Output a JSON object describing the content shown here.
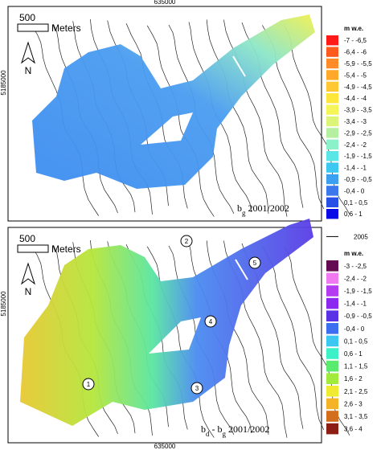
{
  "panels": [
    {
      "axis_label_top": "635000",
      "axis_label_left": "5185000",
      "scale_value": "500",
      "scale_unit": "Meters",
      "north": "N",
      "caption": [
        {
          "text": "b"
        },
        {
          "text": "g",
          "sub": true
        },
        {
          "text": " 2001/2002"
        }
      ],
      "legend": {
        "title": "m w.e.",
        "items": [
          {
            "label": "-7 - -6,5",
            "color": "#ff1a1a"
          },
          {
            "label": "-6,4 - -6",
            "color": "#ff5a1e"
          },
          {
            "label": "-5,9 - -5,5",
            "color": "#ff8c28"
          },
          {
            "label": "-5,4 - -5",
            "color": "#ffa82a"
          },
          {
            "label": "-4,9 - -4,5",
            "color": "#ffc832"
          },
          {
            "label": "-4,4 - -4",
            "color": "#ffe63c"
          },
          {
            "label": "-3,9 - -3,5",
            "color": "#f5f55a"
          },
          {
            "label": "-3,4 - -3",
            "color": "#dcf578"
          },
          {
            "label": "-2,9 - -2,5",
            "color": "#b4f0a0"
          },
          {
            "label": "-2,4 - -2",
            "color": "#8cf0c8"
          },
          {
            "label": "-1,9 - -1,5",
            "color": "#5ae6e6"
          },
          {
            "label": "-1,4 - -1",
            "color": "#3cc8f0"
          },
          {
            "label": "-0,9 - -0,5",
            "color": "#3ca0f0"
          },
          {
            "label": "-0,4 - 0",
            "color": "#3c78eb"
          },
          {
            "label": "0,1 - 0,5",
            "color": "#2850e6"
          },
          {
            "label": "0,6 - 1",
            "color": "#0a0ae6"
          }
        ],
        "line_label": "2005"
      }
    },
    {
      "axis_label_bottom": "635000",
      "axis_label_left": "5185000",
      "scale_value": "500",
      "scale_unit": "Meters",
      "north": "N",
      "caption": [
        {
          "text": "b"
        },
        {
          "text": "d",
          "sub": true
        },
        {
          "text": " - b"
        },
        {
          "text": "g",
          "sub": true
        },
        {
          "text": " 2001/2002"
        }
      ],
      "markers": [
        "1",
        "2",
        "3",
        "4",
        "5"
      ],
      "legend": {
        "title": "m w.e.",
        "items": [
          {
            "label": "-3 - -2,5",
            "color": "#640a50"
          },
          {
            "label": "-2,4 - -2",
            "color": "#f078f0"
          },
          {
            "label": "-1,9 - -1,5",
            "color": "#b43cf0"
          },
          {
            "label": "-1,4 - -1",
            "color": "#8c28f0"
          },
          {
            "label": "-0,9 - -0,5",
            "color": "#5a32e6"
          },
          {
            "label": "-0,4 - 0",
            "color": "#3c6ef0"
          },
          {
            "label": "0,1 - 0,5",
            "color": "#3cc8f0"
          },
          {
            "label": "0,6 - 1",
            "color": "#3cf0c8"
          },
          {
            "label": "1,1 - 1,5",
            "color": "#5aeb6e"
          },
          {
            "label": "1,6 - 2",
            "color": "#a0eb3c"
          },
          {
            "label": "2,1 - 2,5",
            "color": "#f0eb32"
          },
          {
            "label": "2,6 - 3",
            "color": "#f5b428"
          },
          {
            "label": "3,1 - 3,5",
            "color": "#d26e1e"
          },
          {
            "label": "3,6 - 4",
            "color": "#8c1e14"
          }
        ]
      }
    }
  ]
}
